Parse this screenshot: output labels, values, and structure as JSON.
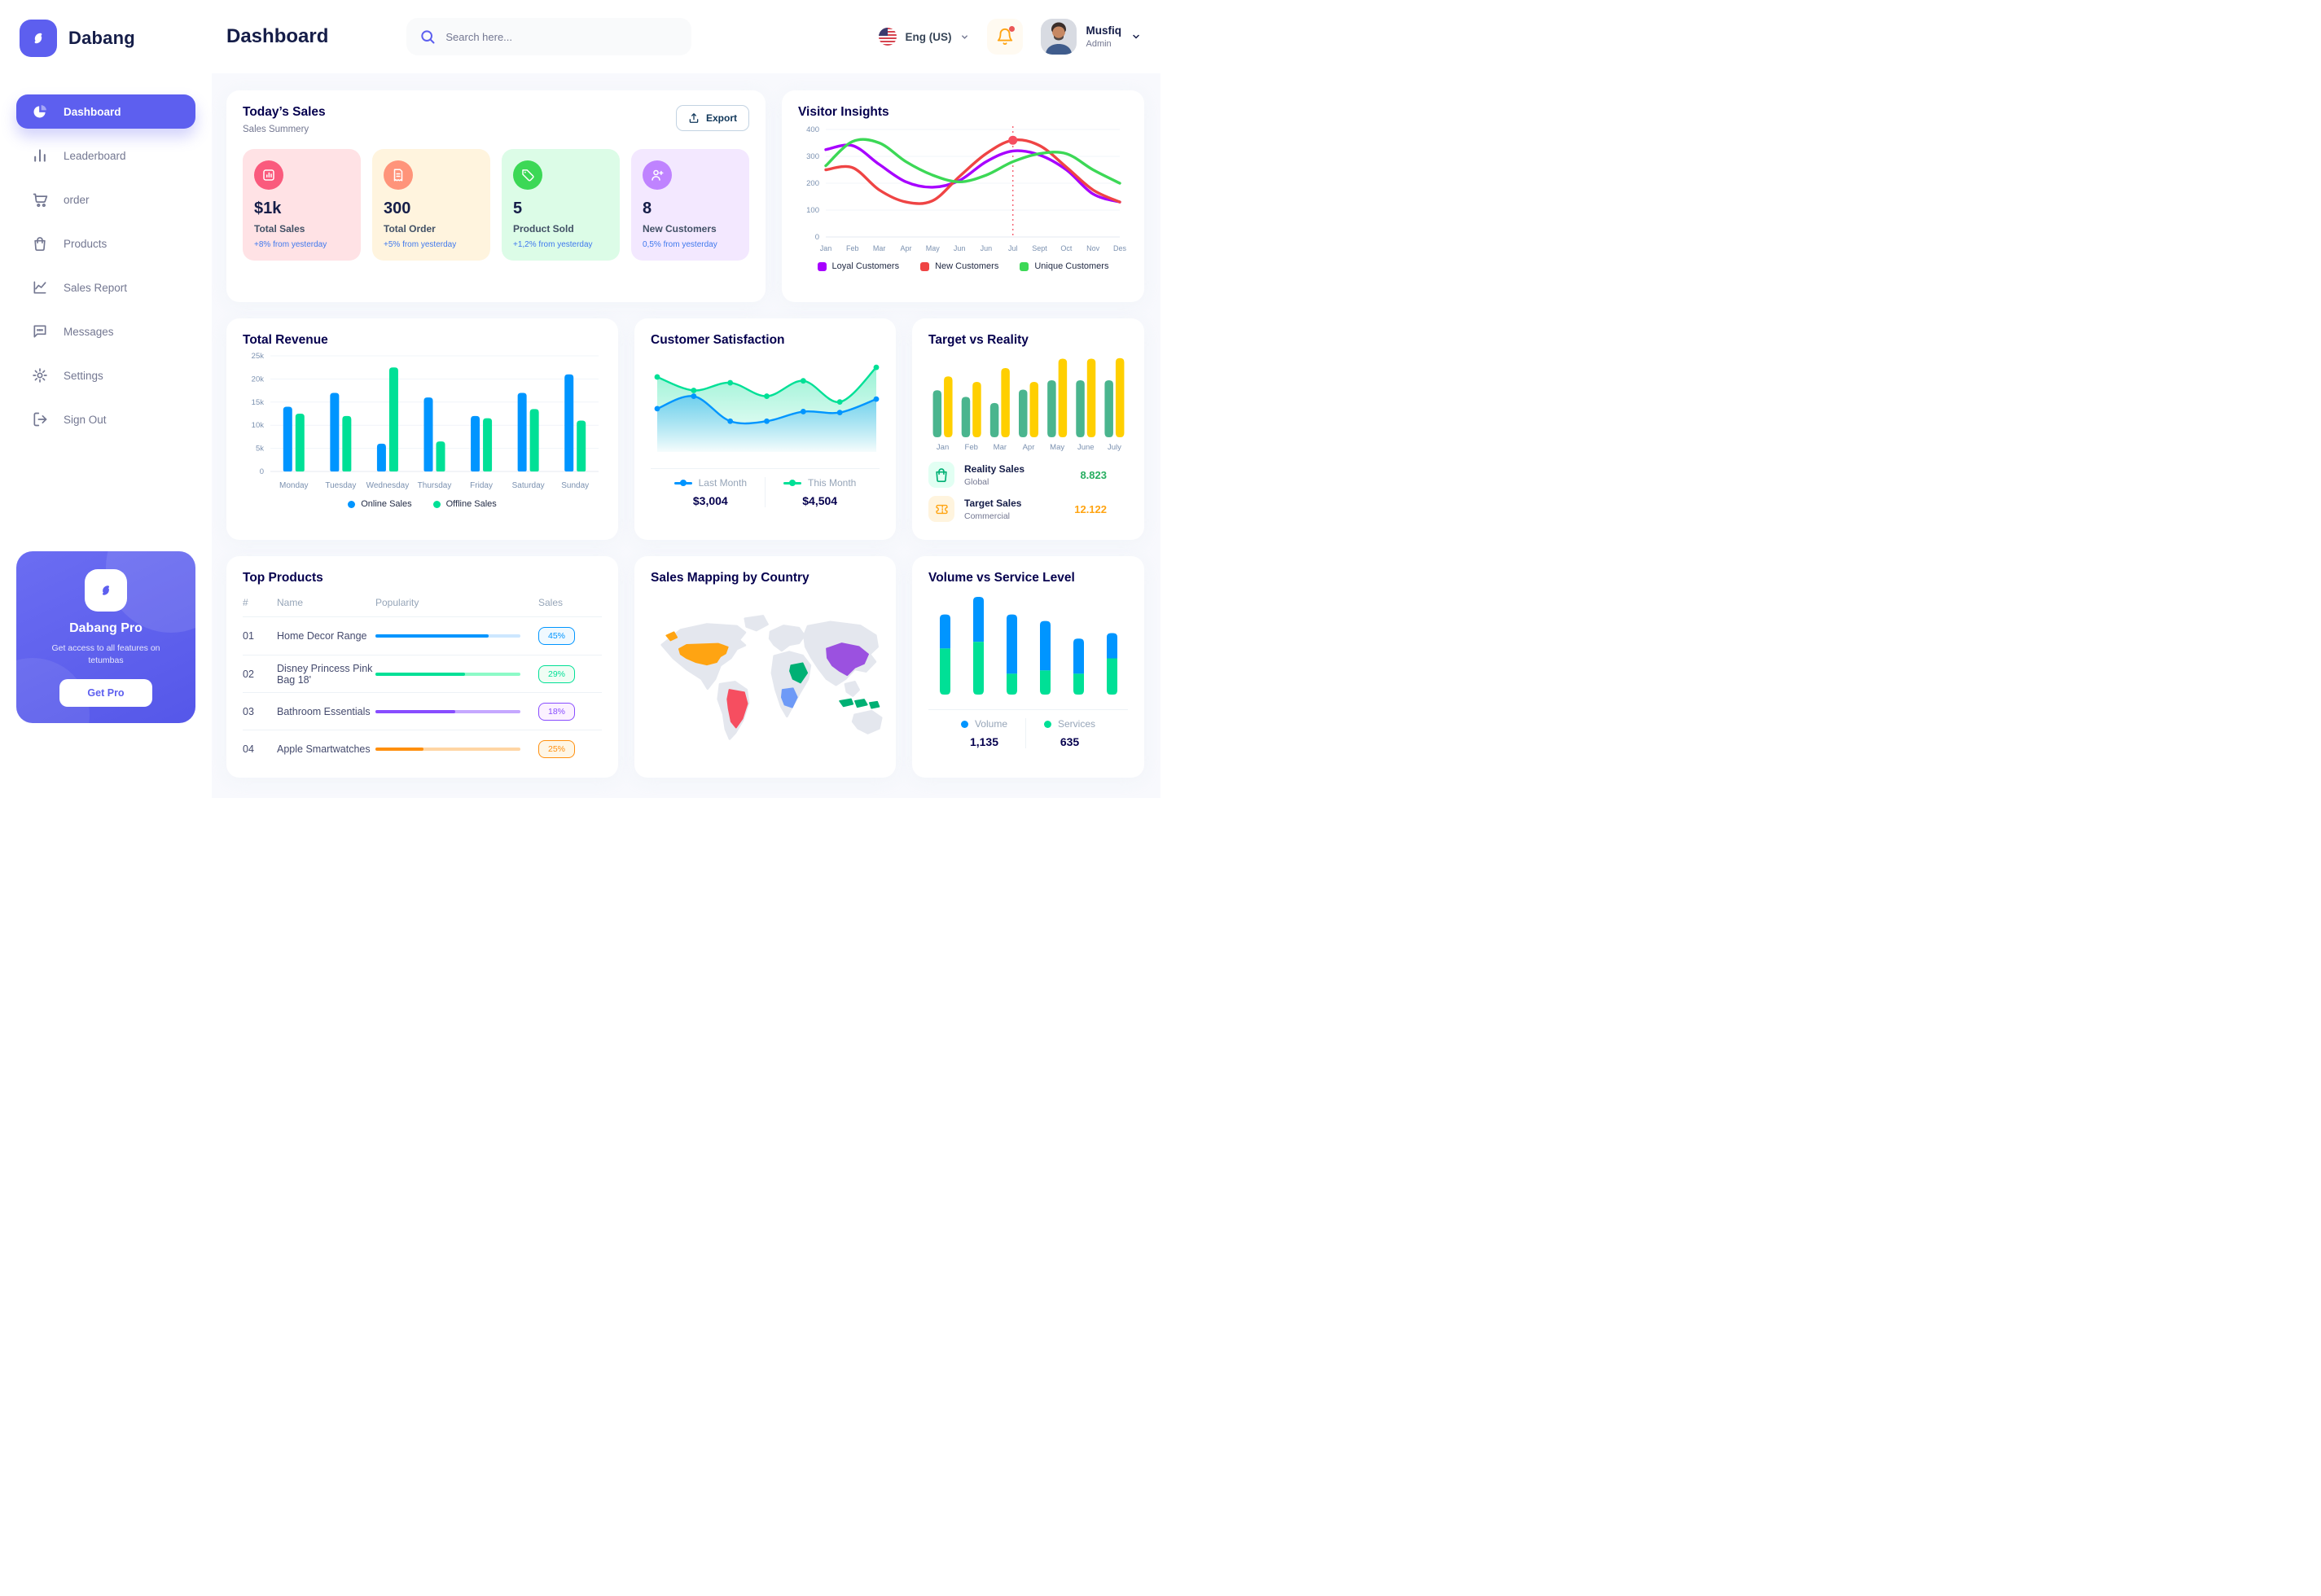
{
  "theme": {
    "primary": "#5D5FEF",
    "heading": "#05004E",
    "text_dark": "#151D48",
    "text_gray": "#737791",
    "axis_gray": "#7B91B0"
  },
  "brand": {
    "name": "Dabang"
  },
  "header": {
    "title": "Dashboard",
    "search": {
      "placeholder": "Search here..."
    },
    "language": {
      "label": "Eng (US)"
    },
    "user": {
      "name": "Musfiq",
      "role": "Admin"
    }
  },
  "sidebar": {
    "items": [
      {
        "label": "Dashboard",
        "icon": "pie-chart-icon",
        "active": true
      },
      {
        "label": "Leaderboard",
        "icon": "bar-chart-icon",
        "active": false
      },
      {
        "label": "order",
        "icon": "cart-icon",
        "active": false
      },
      {
        "label": "Products",
        "icon": "bag-icon",
        "active": false
      },
      {
        "label": "Sales Report",
        "icon": "line-chart-icon",
        "active": false
      },
      {
        "label": "Messages",
        "icon": "message-icon",
        "active": false
      },
      {
        "label": "Settings",
        "icon": "gear-icon",
        "active": false
      },
      {
        "label": "Sign Out",
        "icon": "sign-out-icon",
        "active": false
      }
    ],
    "pro_card": {
      "title": "Dabang Pro",
      "subtitle": "Get access to all features on tetumbas",
      "button": "Get Pro"
    }
  },
  "today_sales": {
    "title": "Today’s Sales",
    "subtitle": "Sales Summery",
    "export_label": "Export",
    "cards": [
      {
        "value": "$1k",
        "label": "Total Sales",
        "change": "+8% from yesterday",
        "bg": "#FFE2E5",
        "icon_bg": "#FA5A7D",
        "icon": "chart-icon"
      },
      {
        "value": "300",
        "label": "Total Order",
        "change": "+5% from yesterday",
        "bg": "#FFF4DE",
        "icon_bg": "#FF947A",
        "icon": "receipt-icon"
      },
      {
        "value": "5",
        "label": "Product Sold",
        "change": "+1,2% from yesterday",
        "bg": "#DCFCE7",
        "icon_bg": "#3CD856",
        "icon": "tag-icon"
      },
      {
        "value": "8",
        "label": "New Customers",
        "change": "0,5% from yesterday",
        "bg": "#F3E8FF",
        "icon_bg": "#BF83FF",
        "icon": "user-plus-icon"
      }
    ]
  },
  "sections": {
    "visitor_insights": {
      "title": "Visitor Insights"
    },
    "total_revenue": {
      "title": "Total Revenue"
    },
    "customer_satisfaction": {
      "title": "Customer Satisfaction"
    },
    "target_vs_reality": {
      "title": "Target vs Reality",
      "legend": [
        {
          "label": "Reality Sales",
          "sublabel": "Global",
          "value": "8.823",
          "value_color": "#27AE60",
          "icon": "bag-icon",
          "icon_color": "#00B074",
          "icon_bg": "#E2FFF3"
        },
        {
          "label": "Target Sales",
          "sublabel": "Commercial",
          "value": "12.122",
          "value_color": "#FFA412",
          "icon": "ticket-icon",
          "icon_color": "#FFA412",
          "icon_bg": "#FFF4DE"
        }
      ]
    },
    "top_products": {
      "title": "Top Products",
      "columns": [
        "#",
        "Name",
        "Popularity",
        "Sales"
      ],
      "rows": [
        {
          "num": "01",
          "name": "Home Decor Range",
          "popularity": 78,
          "sales": "45%",
          "fill": "#0095FF",
          "track": "#CDE7FF",
          "badge_bg": "#F0F9FF"
        },
        {
          "num": "02",
          "name": "Disney Princess Pink Bag 18'",
          "popularity": 62,
          "sales": "29%",
          "fill": "#00E096",
          "track": "#8CFAC7",
          "badge_bg": "#F0FDF4"
        },
        {
          "num": "03",
          "name": "Bathroom Essentials",
          "popularity": 55,
          "sales": "18%",
          "fill": "#884DFF",
          "track": "#C5A8FF",
          "badge_bg": "#FBF1FF"
        },
        {
          "num": "04",
          "name": "Apple Smartwatches",
          "popularity": 33,
          "sales": "25%",
          "fill": "#FF8F0D",
          "track": "#FFD5A4",
          "badge_bg": "#FEF6E6"
        }
      ]
    },
    "sales_mapping": {
      "title": "Sales Mapping by Country",
      "land_color": "#E4E7EE",
      "countries": [
        {
          "id": "usa",
          "name": "United States",
          "color": "#FFA412"
        },
        {
          "id": "brazil",
          "name": "Brazil",
          "color": "#F64E60"
        },
        {
          "id": "saudi-arabia",
          "name": "Saudi Arabia",
          "color": "#00B074"
        },
        {
          "id": "dr-congo",
          "name": "DR Congo",
          "color": "#6E9AF7"
        },
        {
          "id": "china",
          "name": "China",
          "color": "#9B51E0"
        },
        {
          "id": "indonesia",
          "name": "Indonesia",
          "color": "#00B074"
        }
      ]
    },
    "volume_vs_service": {
      "title": "Volume vs Service Level"
    }
  },
  "chart_data": {
    "visitor_insights": {
      "type": "line",
      "x": [
        "Jan",
        "Feb",
        "Mar",
        "Apr",
        "May",
        "Jun",
        "Jun",
        "Jul",
        "Sept",
        "Oct",
        "Nov",
        "Des"
      ],
      "ylim": [
        0,
        400
      ],
      "yticks": [
        0,
        100,
        200,
        300,
        400
      ],
      "grid": true,
      "legend_position": "bottom",
      "series": [
        {
          "name": "Loyal Customers",
          "color": "#A700FF",
          "values": [
            325,
            340,
            270,
            205,
            185,
            210,
            280,
            320,
            305,
            250,
            160,
            130
          ]
        },
        {
          "name": "New Customers",
          "color": "#EF4444",
          "values": [
            250,
            258,
            175,
            130,
            135,
            225,
            310,
            360,
            340,
            260,
            175,
            130
          ]
        },
        {
          "name": "Unique Customers",
          "color": "#3CD856",
          "values": [
            265,
            355,
            350,
            280,
            230,
            205,
            230,
            280,
            310,
            310,
            250,
            200
          ]
        }
      ],
      "marker": {
        "series": "New Customers",
        "x_index": 7,
        "color": "#F64E60"
      }
    },
    "total_revenue": {
      "type": "bar",
      "categories": [
        "Monday",
        "Tuesday",
        "Wednesday",
        "Thursday",
        "Friday",
        "Saturday",
        "Sunday"
      ],
      "ylim": [
        0,
        25
      ],
      "ytick_labels": [
        "0",
        "5k",
        "10k",
        "15k",
        "20k",
        "25k"
      ],
      "grid": true,
      "legend_position": "bottom",
      "series": [
        {
          "name": "Online Sales",
          "color": "#0095FF",
          "values": [
            14,
            17,
            6,
            16,
            12,
            17,
            21
          ]
        },
        {
          "name": "Offline Sales",
          "color": "#00E096",
          "values": [
            12.5,
            12,
            22.5,
            6.5,
            11.5,
            13.5,
            11
          ]
        }
      ]
    },
    "customer_satisfaction": {
      "type": "area",
      "ylim": [
        0,
        100
      ],
      "series": [
        {
          "name": "This Month",
          "color": "#00E096",
          "total": "$4,504",
          "values": [
            78,
            64,
            72,
            58,
            74,
            52,
            88
          ]
        },
        {
          "name": "Last Month",
          "color": "#0095FF",
          "total": "$3,004",
          "values": [
            45,
            58,
            32,
            32,
            42,
            41,
            55
          ]
        }
      ],
      "legend_order": [
        "Last Month",
        "This Month"
      ]
    },
    "target_vs_reality": {
      "type": "bar",
      "categories": [
        "Jan",
        "Feb",
        "Mar",
        "Apr",
        "May",
        "June",
        "July"
      ],
      "ylim": [
        0,
        15
      ],
      "series": [
        {
          "name": "Reality Sales",
          "color": "#4AB58E",
          "values": [
            8.5,
            7.3,
            6.2,
            8.6,
            10.3,
            10.3,
            10.3
          ]
        },
        {
          "name": "Target Sales",
          "color": "#FFCF00",
          "values": [
            11,
            10,
            12.5,
            10,
            14.2,
            14.2,
            14.3
          ]
        }
      ]
    },
    "volume_vs_service": {
      "type": "stacked-bar",
      "categories": [
        "1",
        "2",
        "3",
        "4",
        "5",
        "6"
      ],
      "series": [
        {
          "name": "Volume",
          "color": "#0095FF",
          "total": "1,135",
          "values": [
            31,
            41,
            54,
            45,
            32,
            23
          ]
        },
        {
          "name": "Services",
          "color": "#00E096",
          "total": "635",
          "values": [
            42,
            48,
            19,
            22,
            19,
            33
          ]
        }
      ]
    }
  }
}
